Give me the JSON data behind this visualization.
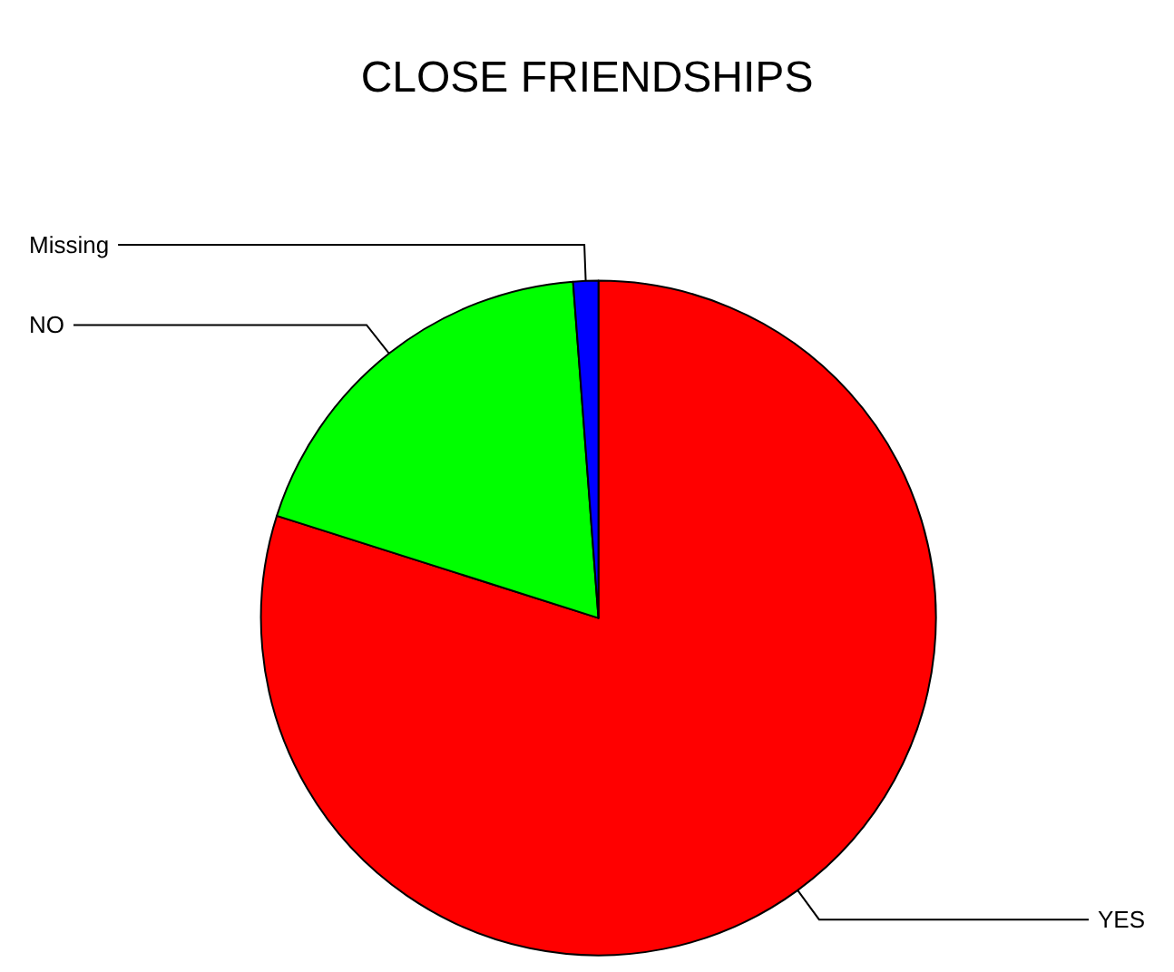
{
  "chart_data": {
    "type": "pie",
    "title": "CLOSE FRIENDSHIPS",
    "categories": [
      "YES",
      "NO",
      "Missing"
    ],
    "values": [
      79.9,
      18.9,
      1.2
    ],
    "colors": [
      "#ff0000",
      "#00ff00",
      "#0000ff"
    ]
  }
}
